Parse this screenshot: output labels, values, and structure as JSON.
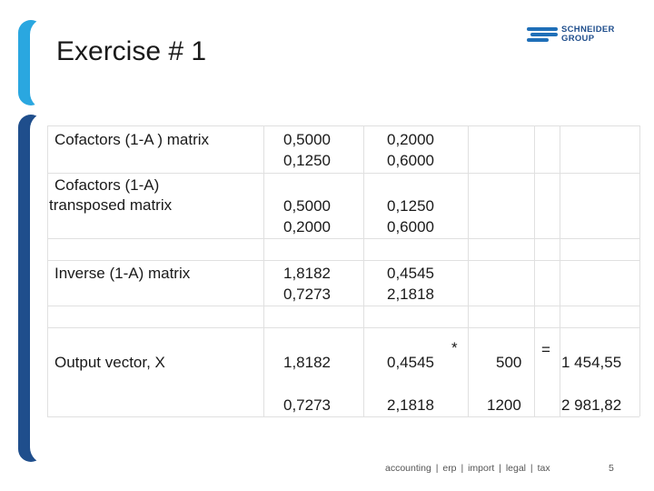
{
  "slide": {
    "title": "Exercise # 1",
    "page_number": "5",
    "footer": "accounting  |  erp  |  import  |  legal  |  tax"
  },
  "logo": {
    "line1": "SCHNEIDER",
    "line2": "GROUP",
    "color": "#1f4e8c"
  },
  "colors": {
    "accent_light": "#2aa7e0",
    "accent_dark": "#1f4e8c"
  },
  "table": {
    "cofactors": {
      "label": "Cofactors (1-A ) matrix",
      "r1": [
        "0,5000",
        "0,2000"
      ],
      "r2": [
        "0,1250",
        "0,6000"
      ]
    },
    "transposed": {
      "label_line1": "Cofactors (1-A)",
      "label_line2": "transposed matrix",
      "r1": [
        "0,5000",
        "0,1250"
      ],
      "r2": [
        "0,2000",
        "0,6000"
      ]
    },
    "inverse": {
      "label": "Inverse (1-A) matrix",
      "r1": [
        "1,8182",
        "0,4545"
      ],
      "r2": [
        "0,7273",
        "2,1818"
      ]
    },
    "output": {
      "label": "Output vector, X",
      "r1": [
        "1,8182",
        "0,4545"
      ],
      "r2": [
        "0,7273",
        "2,1818"
      ],
      "multiply": "*",
      "equals": "=",
      "vector": [
        "500",
        "1200"
      ],
      "result": [
        "1 454,55",
        "2 981,82"
      ]
    }
  }
}
